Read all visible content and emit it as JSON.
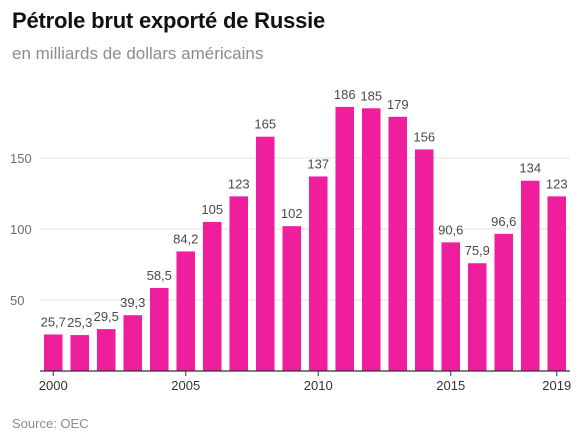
{
  "title": "Pétrole brut exporté de Russie",
  "subtitle": "en milliards de dollars américains",
  "source": "Source: OEC",
  "colors": {
    "bar": "#ee1e9c",
    "grid": "#e3e3e3",
    "axis": "#333333"
  },
  "chart_data": {
    "type": "bar",
    "title": "Pétrole brut exporté de Russie",
    "subtitle": "en milliards de dollars américains",
    "categories": [
      "2000",
      "2001",
      "2002",
      "2003",
      "2004",
      "2005",
      "2006",
      "2007",
      "2008",
      "2009",
      "2010",
      "2011",
      "2012",
      "2013",
      "2014",
      "2015",
      "2016",
      "2017",
      "2018",
      "2019"
    ],
    "values": [
      25.7,
      25.3,
      29.5,
      39.3,
      58.5,
      84.2,
      105,
      123,
      165,
      102,
      137,
      186,
      185,
      179,
      156,
      90.6,
      75.9,
      96.6,
      134,
      123
    ],
    "data_labels": [
      "25,7",
      "25,3",
      "29,5",
      "39,3",
      "58,5",
      "84,2",
      "105",
      "123",
      "165",
      "102",
      "137",
      "186",
      "185",
      "179",
      "156",
      "90,6",
      "75,9",
      "96,6",
      "134",
      "123"
    ],
    "x_tick_labels": [
      "2000",
      "2005",
      "2010",
      "2015",
      "2019"
    ],
    "y_ticks": [
      50,
      100,
      150
    ],
    "ylim": [
      0,
      200
    ],
    "grid": true
  }
}
